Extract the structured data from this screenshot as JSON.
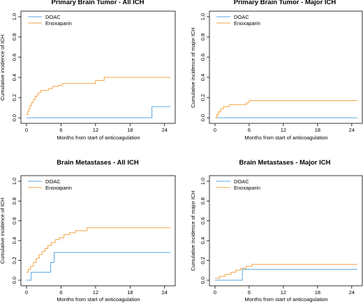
{
  "chart_data": [
    {
      "type": "line",
      "step": true,
      "title": "Primary Brain Tumor - All ICH",
      "xlabel": "Months from start of anticoagulation",
      "ylabel": "Cumulative incidence of ICH",
      "xlim": [
        0,
        25
      ],
      "ylim": [
        0,
        1.0
      ],
      "xticks": [
        0,
        6,
        12,
        18,
        24
      ],
      "yticks": [
        0.0,
        0.2,
        0.4,
        0.6,
        0.8,
        1.0
      ],
      "legend": "top-left",
      "series": [
        {
          "name": "DOAC",
          "color": "#5aa7e0",
          "x": [
            0,
            21.8,
            21.8,
            25
          ],
          "y": [
            0,
            0,
            0.11,
            0.11
          ]
        },
        {
          "name": "Enoxaparin",
          "color": "#f4a341",
          "x": [
            0,
            0.2,
            0.4,
            0.6,
            0.9,
            1.2,
            1.5,
            1.8,
            2.1,
            2.5,
            3.0,
            3.8,
            4.5,
            5.5,
            6.2,
            8.0,
            12.0,
            13.5,
            25
          ],
          "y": [
            0.03,
            0.06,
            0.09,
            0.12,
            0.15,
            0.18,
            0.21,
            0.23,
            0.25,
            0.27,
            0.27,
            0.29,
            0.31,
            0.32,
            0.34,
            0.34,
            0.37,
            0.4,
            0.4
          ]
        }
      ]
    },
    {
      "type": "line",
      "step": true,
      "title": "Primary Brain Tumor - Major ICH",
      "xlabel": "Months from start of anticoagulation",
      "ylabel": "Cumulative incidence of major ICH",
      "xlim": [
        0,
        25
      ],
      "ylim": [
        0,
        1.0
      ],
      "xticks": [
        0,
        6,
        12,
        18,
        24
      ],
      "yticks": [
        0.0,
        0.2,
        0.4,
        0.6,
        0.8,
        1.0
      ],
      "legend": "top-left",
      "series": [
        {
          "name": "DOAC",
          "color": "#5aa7e0",
          "x": [
            0,
            25
          ],
          "y": [
            0,
            0
          ]
        },
        {
          "name": "Enoxaparin",
          "color": "#f4a341",
          "x": [
            0,
            0.3,
            0.6,
            1.0,
            1.5,
            2.5,
            5.5,
            6.0,
            25
          ],
          "y": [
            0.0,
            0.03,
            0.06,
            0.09,
            0.11,
            0.13,
            0.15,
            0.17,
            0.17
          ]
        }
      ]
    },
    {
      "type": "line",
      "step": true,
      "title": "Brain Metastases - All ICH",
      "xlabel": "Months from start of anticoagulation",
      "ylabel": "Cumulative incidence of ICH",
      "xlim": [
        0,
        25
      ],
      "ylim": [
        0,
        1.0
      ],
      "xticks": [
        0,
        6,
        12,
        18,
        24
      ],
      "yticks": [
        0.0,
        0.2,
        0.4,
        0.6,
        0.8,
        1.0
      ],
      "legend": "top-left",
      "series": [
        {
          "name": "DOAC",
          "color": "#5aa7e0",
          "x": [
            0,
            0.8,
            4.2,
            4.8,
            25
          ],
          "y": [
            0,
            0.08,
            0.18,
            0.28,
            0.28
          ]
        },
        {
          "name": "Enoxaparin",
          "color": "#f4a341",
          "x": [
            0,
            0.3,
            0.7,
            1.2,
            1.7,
            2.2,
            2.7,
            3.2,
            3.7,
            4.3,
            5.0,
            5.7,
            6.5,
            7.5,
            8.5,
            10.5,
            25
          ],
          "y": [
            0.08,
            0.11,
            0.14,
            0.18,
            0.22,
            0.26,
            0.29,
            0.32,
            0.35,
            0.38,
            0.41,
            0.43,
            0.46,
            0.48,
            0.5,
            0.53,
            0.53
          ]
        }
      ]
    },
    {
      "type": "line",
      "step": true,
      "title": "Brain Metastases - Major ICH",
      "xlabel": "Months from start of anticoagulation",
      "ylabel": "Cumulative incidence of major ICH",
      "xlim": [
        0,
        25
      ],
      "ylim": [
        0,
        1.0
      ],
      "xticks": [
        0,
        6,
        12,
        18,
        24
      ],
      "yticks": [
        0.0,
        0.2,
        0.4,
        0.6,
        0.8,
        1.0
      ],
      "legend": "top-left",
      "series": [
        {
          "name": "DOAC",
          "color": "#5aa7e0",
          "x": [
            0,
            4.8,
            25
          ],
          "y": [
            0.0,
            0.11,
            0.11
          ]
        },
        {
          "name": "Enoxaparin",
          "color": "#f4a341",
          "x": [
            0,
            0.8,
            1.8,
            2.8,
            3.6,
            4.5,
            5.5,
            6.5,
            25
          ],
          "y": [
            0.02,
            0.04,
            0.06,
            0.08,
            0.1,
            0.12,
            0.14,
            0.16,
            0.16
          ]
        }
      ]
    }
  ]
}
